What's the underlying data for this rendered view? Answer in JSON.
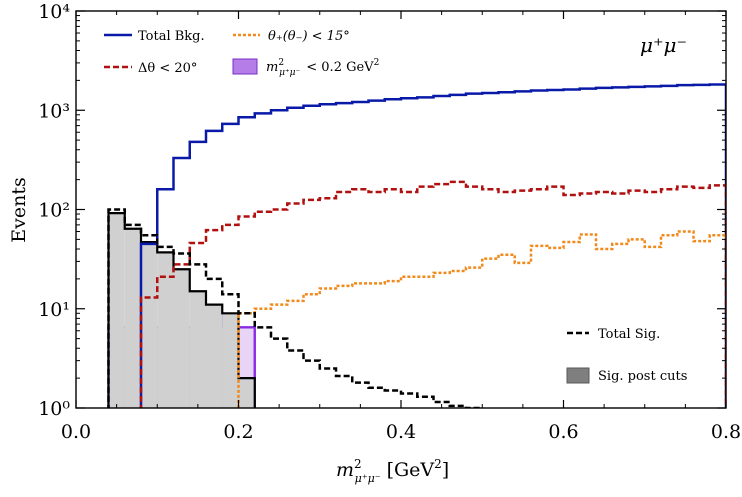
{
  "chart_data": {
    "type": "histogram",
    "scale_y": "log",
    "xlim": [
      0.0,
      0.8
    ],
    "ylim": [
      1,
      10000
    ],
    "xticks": [
      "0.0",
      "0.2",
      "0.4",
      "0.6",
      "0.8"
    ],
    "xtick_values": [
      0.0,
      0.2,
      0.4,
      0.6,
      0.8
    ],
    "yticks": [
      "10⁰",
      "10¹",
      "10²",
      "10³",
      "10⁴"
    ],
    "ytick_values": [
      1,
      10,
      100,
      1000,
      10000
    ],
    "xlabel": "m²μ⁺μ⁻ [GeV²]",
    "ylabel": "Events",
    "annotation": "μ⁺μ⁻",
    "bin_edges": [
      0.04,
      0.06,
      0.08,
      0.1,
      0.12,
      0.14,
      0.16,
      0.18,
      0.2,
      0.22,
      0.24,
      0.26,
      0.28,
      0.3,
      0.32,
      0.34,
      0.36,
      0.38,
      0.4,
      0.42,
      0.44,
      0.46,
      0.48,
      0.5,
      0.52,
      0.54,
      0.56,
      0.58,
      0.6,
      0.62,
      0.64,
      0.66,
      0.68,
      0.7,
      0.72,
      0.74,
      0.76,
      0.78,
      0.8
    ],
    "series": [
      {
        "name": "Total Bkg.",
        "color": "#0a1aa8",
        "style": "solid",
        "x_start": 0.08,
        "values": [
          45,
          160,
          330,
          480,
          620,
          730,
          850,
          930,
          1000,
          1060,
          1110,
          1150,
          1180,
          1210,
          1250,
          1290,
          1320,
          1350,
          1390,
          1430,
          1470,
          1490,
          1520,
          1550,
          1580,
          1600,
          1620,
          1650,
          1680,
          1700,
          1720,
          1740,
          1760,
          1790,
          1800,
          1820
        ]
      },
      {
        "name": "Δθ < 20°",
        "color": "#b01010",
        "style": "dashed",
        "x_start": 0.08,
        "values": [
          13,
          21,
          28,
          46,
          62,
          70,
          85,
          95,
          100,
          115,
          125,
          130,
          150,
          160,
          150,
          160,
          150,
          170,
          180,
          190,
          170,
          160,
          150,
          155,
          160,
          170,
          140,
          145,
          150,
          145,
          155,
          150,
          160,
          170,
          165,
          175
        ]
      },
      {
        "name": "θ₊(θ₋) < 15°",
        "color": "#f08a1c",
        "style": "dotted",
        "x_start": 0.2,
        "values": [
          9,
          10,
          11,
          12,
          14,
          16,
          17,
          18,
          18,
          19,
          21,
          21,
          23,
          24,
          26,
          32,
          35,
          29,
          43,
          41,
          47,
          56,
          40,
          45,
          50,
          42,
          55,
          60,
          48,
          55,
          52,
          60,
          65
        ]
      },
      {
        "name": "Total Sig.",
        "color": "#000000",
        "style": "dashed",
        "x_start": 0.04,
        "values": [
          100,
          70,
          55,
          42,
          36,
          28,
          20,
          14,
          9,
          6.5,
          5,
          3.8,
          3.0,
          2.5,
          2.1,
          1.8,
          1.6,
          1.5,
          1.4,
          1.3,
          1.15,
          1.05,
          1.0,
          0.9
        ]
      },
      {
        "name": "Sig. post cuts",
        "color": "#7f7f7f",
        "style": "filled",
        "x_start": 0.04,
        "values": [
          92,
          64,
          47,
          37,
          25,
          15,
          11,
          9,
          2
        ]
      },
      {
        "name": "m²μ⁺μ⁻ < 0.2 GeV²",
        "color": "#9b44d9",
        "style": "filled",
        "x_start": 0.04,
        "values": [
          6.5,
          6.5,
          6.5,
          6.5,
          6.5,
          6.5,
          9,
          6.5,
          6.5
        ]
      }
    ]
  },
  "legend": {
    "total_bkg": "Total Bkg.",
    "theta_cut": "θ₊(θ₋) < 15°",
    "delta_theta": "Δθ < 20°",
    "mass_cut_main": "m",
    "mass_cut_sup": "2",
    "mass_cut_sub": "μ⁺μ⁻",
    "mass_cut_rest": "< 0.2 GeV",
    "mass_cut_rest_sup": "2",
    "total_sig": "Total Sig.",
    "sig_post_cuts": "Sig. post cuts"
  },
  "axes": {
    "xlabel_main": "m",
    "xlabel_sup": "2",
    "xlabel_sub": "μ⁺μ⁻",
    "xlabel_rest": "[GeV",
    "xlabel_rest_sup": "2",
    "xlabel_close": "]",
    "ylabel": "Events"
  }
}
